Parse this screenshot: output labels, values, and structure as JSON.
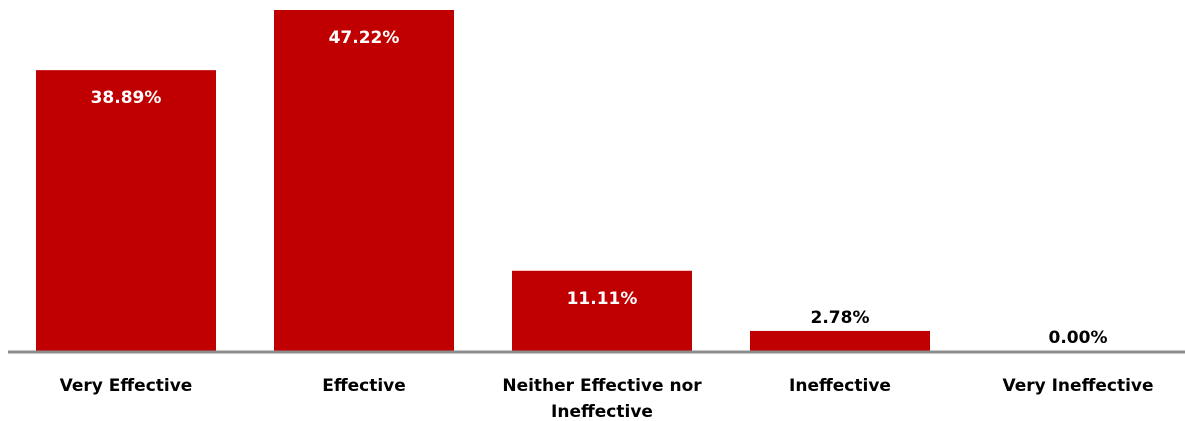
{
  "chart_data": {
    "type": "bar",
    "categories": [
      [
        "Very Effective"
      ],
      [
        "Effective"
      ],
      [
        "Neither Effective nor",
        "Ineffective"
      ],
      [
        "Ineffective"
      ],
      [
        "Very Ineffective"
      ]
    ],
    "values": [
      38.89,
      47.22,
      11.11,
      2.78,
      0.0
    ],
    "data_labels": [
      "38.89%",
      "47.22%",
      "11.11%",
      "2.78%",
      "0.00%"
    ],
    "ylim": [
      0,
      47.22
    ],
    "grid": false,
    "legend": "none",
    "colors": {
      "bar": "#c00000",
      "axis": "#8c8c8c",
      "label_inside": "#ffffff",
      "label_outside": "#000000"
    }
  }
}
